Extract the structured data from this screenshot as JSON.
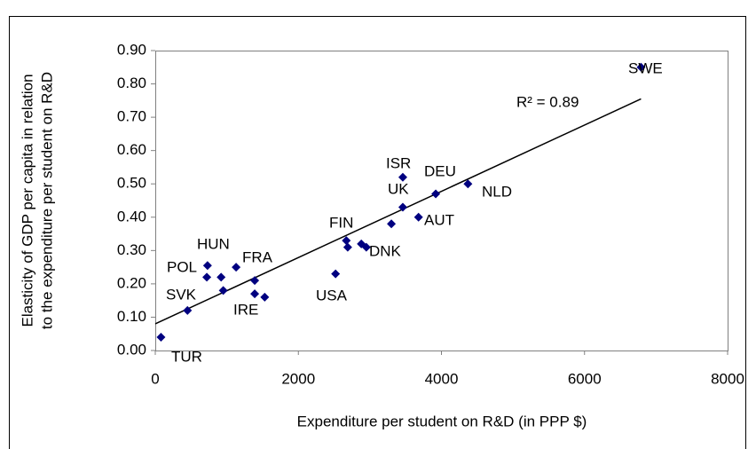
{
  "chart_data": {
    "type": "scatter",
    "xlabel": "Expenditure per student on R&D (in PPP $)",
    "ylabel": [
      "Elasticity of GDP per capita in relation",
      "to the expenditure per student on R&D"
    ],
    "x": [
      80,
      450,
      720,
      730,
      920,
      950,
      1130,
      1390,
      1390,
      1530,
      2520,
      2670,
      2690,
      2880,
      2950,
      3300,
      3460,
      3460,
      3680,
      3920,
      4370,
      6790
    ],
    "y": [
      0.04,
      0.12,
      0.22,
      0.255,
      0.22,
      0.18,
      0.25,
      0.21,
      0.17,
      0.16,
      0.23,
      0.33,
      0.31,
      0.32,
      0.31,
      0.38,
      0.43,
      0.52,
      0.4,
      0.47,
      0.5,
      0.85
    ],
    "labels": [
      "TUR",
      "SVK",
      "POL",
      "HUN",
      null,
      null,
      "FRA",
      null,
      "IRE",
      null,
      "USA",
      "FIN",
      null,
      null,
      "DNK",
      null,
      "UK",
      "ISR",
      "AUT",
      "DEU",
      "NLD",
      "SWE"
    ],
    "color": "#000080",
    "trendline": {
      "x": [
        0,
        6790
      ],
      "y": [
        0.08,
        0.755
      ]
    },
    "annotation": "R² = 0.89",
    "xlim": [
      0,
      8000
    ],
    "xticks": [
      0,
      2000,
      4000,
      6000,
      8000
    ],
    "ylim": [
      0,
      0.9
    ],
    "yticks": [
      {
        "value": 0,
        "label": "0.00"
      },
      {
        "value": 0.1,
        "label": "0.10"
      },
      {
        "value": 0.2,
        "label": "0.20"
      },
      {
        "value": 0.3,
        "label": "0.30"
      },
      {
        "value": 0.4,
        "label": "0.40"
      },
      {
        "value": 0.5,
        "label": "0.50"
      },
      {
        "value": 0.6,
        "label": "0.60"
      },
      {
        "value": 0.7,
        "label": "0.70"
      },
      {
        "value": 0.8,
        "label": "0.80"
      },
      {
        "value": 0.9,
        "label": "0.90"
      }
    ]
  }
}
